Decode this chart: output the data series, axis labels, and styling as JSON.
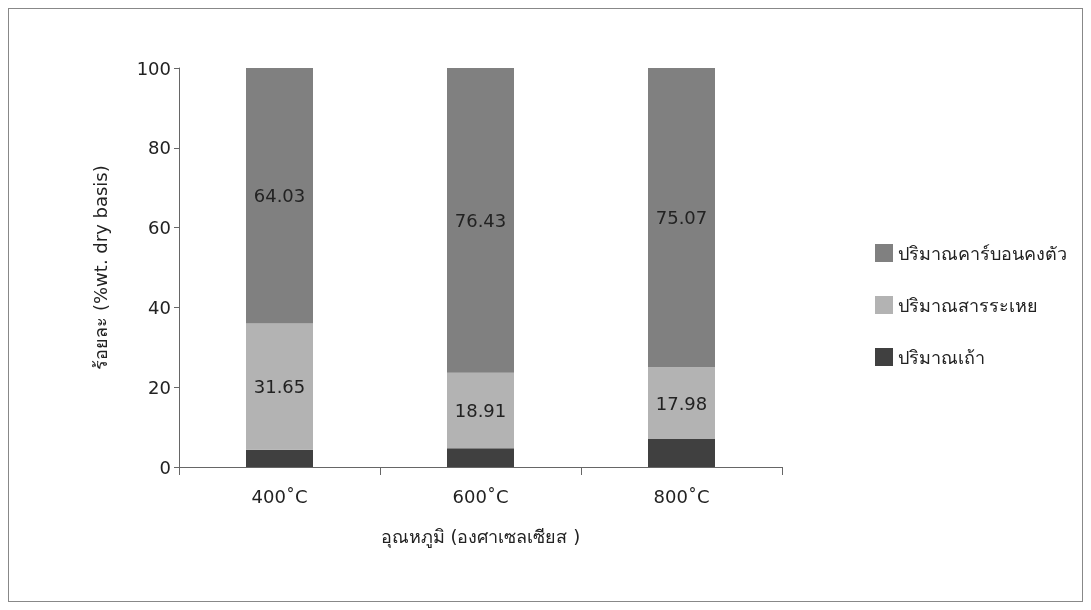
{
  "chart_data": {
    "type": "bar",
    "stacked": true,
    "xlabel": "อุณหภูมิ (องศาเซลเซียส )",
    "ylabel": "ร้อยละ (%wt. dry basis)",
    "categories": [
      "400˚C",
      "600˚C",
      "800˚C"
    ],
    "series": [
      {
        "name": "ปริมาณเถ้า",
        "color": "#404040",
        "values": [
          4.3,
          4.7,
          7
        ]
      },
      {
        "name": "ปริมาณสารระเหย",
        "color": "#b3b3b3",
        "values": [
          31.65,
          18.91,
          17.98
        ],
        "value_labels": [
          "31.65",
          "18.91",
          "17.98"
        ]
      },
      {
        "name": "ปริมาณคาร์บอนคงตัว",
        "color": "#808080",
        "values": [
          64.03,
          76.43,
          75.07
        ],
        "value_labels": [
          "64.03",
          "76.43",
          "75.07"
        ]
      }
    ],
    "ylim": [
      0,
      100
    ],
    "yticks": [
      0,
      20,
      40,
      60,
      80,
      100
    ],
    "grid": false,
    "legend": "right"
  }
}
